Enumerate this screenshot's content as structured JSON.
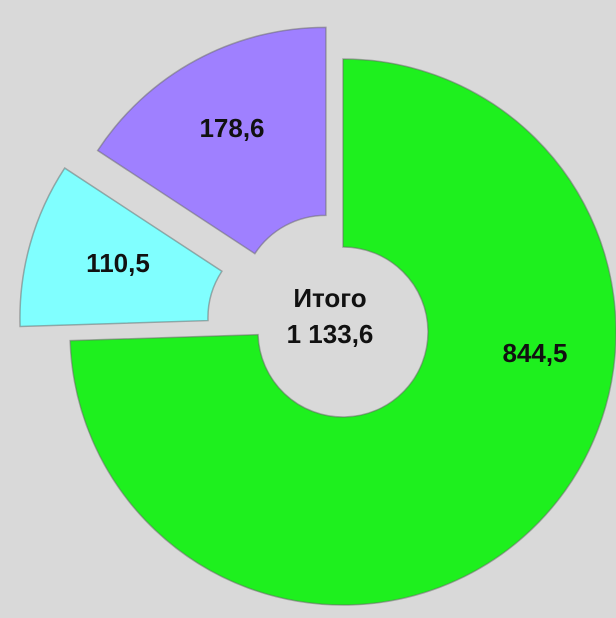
{
  "chart_data": {
    "type": "donut",
    "categories": [
      null,
      null,
      null
    ],
    "values": [
      844.5,
      110.5,
      178.6
    ],
    "value_labels": [
      "844,5",
      "110,5",
      "178,6"
    ],
    "colors": [
      "#1ef01e",
      "#80ffff",
      "#9f80ff"
    ],
    "center_text": [
      "Итого",
      "1 133,6"
    ]
  }
}
